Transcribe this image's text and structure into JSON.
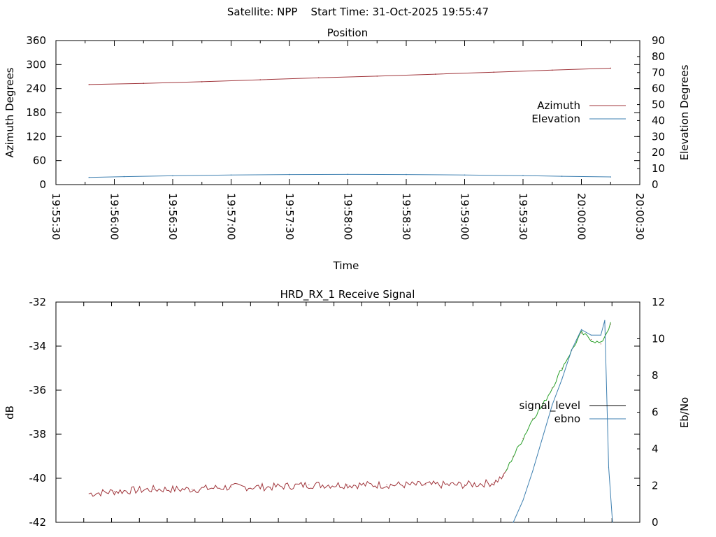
{
  "page_title": "Satellite: NPP    Start Time: 31-Oct-2025 19:55:47",
  "colors": {
    "azimuth": "#a0353b",
    "elevation": "#3d7fb0",
    "signal_level": "#000000",
    "signal_trace": "#a0353b",
    "signal_trace_high": "#2aa02a",
    "ebno": "#3d7fb0"
  },
  "chart_data": [
    {
      "type": "line",
      "title": "Position",
      "xlabel": "Time",
      "ylabel": "Azimuth Degrees",
      "y2label": "Elevation Degrees",
      "x_ticks": [
        "19:55:30",
        "19:56:00",
        "19:56:30",
        "19:57:00",
        "19:57:30",
        "19:58:00",
        "19:58:30",
        "19:59:00",
        "19:59:30",
        "20:00:00",
        "20:00:30"
      ],
      "xlim": [
        "19:55:30",
        "20:00:30"
      ],
      "ylim": [
        0,
        360
      ],
      "y_ticks": [
        0,
        60,
        120,
        180,
        240,
        300,
        360
      ],
      "y2lim": [
        0,
        90
      ],
      "y2_ticks": [
        0,
        10,
        20,
        30,
        40,
        50,
        60,
        70,
        80,
        90
      ],
      "legend": "right",
      "series": [
        {
          "name": "Azimuth",
          "axis": "left",
          "x": [
            "19:55:47",
            "19:56:15",
            "19:56:45",
            "19:57:15",
            "19:57:45",
            "19:58:15",
            "19:58:45",
            "19:59:15",
            "19:59:45",
            "20:00:15"
          ],
          "values": [
            250,
            253,
            257,
            262,
            267,
            271,
            276,
            281,
            286,
            291
          ]
        },
        {
          "name": "Elevation",
          "axis": "right",
          "x": [
            "19:55:47",
            "19:56:05",
            "19:56:30",
            "19:57:00",
            "19:57:30",
            "19:58:00",
            "19:58:30",
            "19:59:00",
            "19:59:30",
            "19:59:50",
            "20:00:15"
          ],
          "values": [
            4.5,
            5.0,
            5.5,
            6.0,
            6.3,
            6.4,
            6.3,
            6.0,
            5.6,
            5.2,
            4.8
          ]
        }
      ]
    },
    {
      "type": "line",
      "title": "HRD_RX_1 Receive Signal",
      "ylabel": "dB",
      "y2label": "Eb/No",
      "ylim": [
        -42,
        -32
      ],
      "y_ticks": [
        -42,
        -40,
        -38,
        -36,
        -34,
        -32
      ],
      "y2lim": [
        0,
        12
      ],
      "y2_ticks": [
        0,
        2,
        4,
        6,
        8,
        10,
        12
      ],
      "xlim": [
        "19:55:30",
        "20:00:30"
      ],
      "x_tick_count": 20,
      "legend": "right",
      "series": [
        {
          "name": "signal_level",
          "axis": "left",
          "x": [
            "19:55:47",
            "19:56:00",
            "19:56:20",
            "19:56:40",
            "19:57:00",
            "19:57:20",
            "19:57:40",
            "19:58:00",
            "19:58:20",
            "19:58:40",
            "19:59:00",
            "19:59:15",
            "19:59:20",
            "19:59:25",
            "19:59:30",
            "19:59:35",
            "19:59:40",
            "19:59:45",
            "19:59:50",
            "19:59:55",
            "20:00:00",
            "20:00:05",
            "20:00:10",
            "20:00:15"
          ],
          "values": [
            -40.7,
            -40.6,
            -40.5,
            -40.5,
            -40.4,
            -40.4,
            -40.3,
            -40.3,
            -40.3,
            -40.3,
            -40.3,
            -40.2,
            -39.9,
            -39.0,
            -38.2,
            -37.3,
            -36.7,
            -35.9,
            -35.0,
            -34.2,
            -33.4,
            -33.7,
            -33.9,
            -33.0
          ]
        },
        {
          "name": "ebno",
          "axis": "right",
          "x": [
            "19:59:25",
            "19:59:30",
            "19:59:35",
            "19:59:40",
            "19:59:45",
            "19:59:50",
            "19:59:55",
            "20:00:00",
            "20:00:05",
            "20:00:10",
            "20:00:12",
            "20:00:14",
            "20:00:16"
          ],
          "values": [
            0.0,
            1.2,
            2.8,
            4.6,
            6.4,
            7.8,
            9.4,
            10.5,
            10.2,
            10.2,
            11.0,
            3.0,
            0.0
          ]
        }
      ]
    }
  ]
}
